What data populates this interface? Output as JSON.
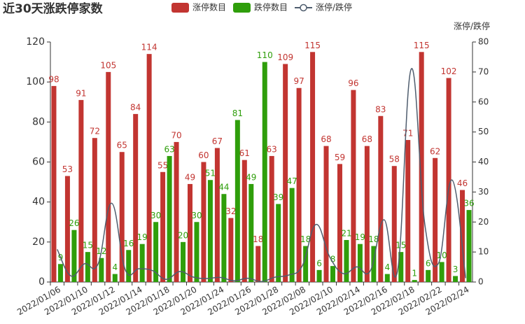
{
  "chart_data": {
    "type": "bar",
    "title": "近30天涨跌停家数",
    "y2label": "涨停/跌停",
    "categories": [
      "2022/01/06",
      null,
      "2022/01/10",
      null,
      "2022/01/12",
      null,
      "2022/01/14",
      null,
      "2022/01/18",
      null,
      "2022/01/20",
      null,
      "2022/01/24",
      null,
      "2022/01/26",
      null,
      "2022/01/28",
      null,
      "2022/02/08",
      null,
      "2022/02/10",
      null,
      "2022/02/14",
      null,
      "2022/02/16",
      null,
      "2022/02/18",
      null,
      "2022/02/22",
      null,
      "2022/02/24"
    ],
    "series": [
      {
        "name": "涨停数目",
        "type": "bar",
        "color": "#c23531",
        "values": [
          98,
          53,
          91,
          72,
          105,
          65,
          84,
          114,
          55,
          70,
          49,
          60,
          67,
          32,
          61,
          18,
          63,
          109,
          97,
          115,
          68,
          59,
          96,
          68,
          83,
          58,
          71,
          115,
          62,
          102,
          46
        ]
      },
      {
        "name": "跌停数目",
        "type": "bar",
        "color": "#2f9e0b",
        "values": [
          9,
          26,
          15,
          12,
          4,
          16,
          19,
          30,
          63,
          20,
          30,
          51,
          44,
          81,
          49,
          110,
          39,
          47,
          18,
          6,
          8,
          21,
          19,
          18,
          4,
          15,
          1,
          6,
          10,
          3,
          36
        ]
      },
      {
        "name": "涨停/跌停",
        "type": "line",
        "axis": "y2",
        "color": "#4f5d6e",
        "values": [
          10.89,
          2.04,
          6.07,
          6,
          26.25,
          4.06,
          4.42,
          3.8,
          0.87,
          3.5,
          1.63,
          1.18,
          1.52,
          0.4,
          1.24,
          0.16,
          1.62,
          2.32,
          5.39,
          19.17,
          8.5,
          2.81,
          5.05,
          3.78,
          20.75,
          3.87,
          71,
          19.17,
          6.2,
          34,
          1.28
        ]
      }
    ],
    "ylim": [
      0,
      120
    ],
    "yticks": [
      0,
      20,
      40,
      60,
      80,
      100,
      120
    ],
    "y2lim": [
      0,
      80
    ],
    "y2ticks": [
      0,
      10,
      20,
      30,
      40,
      50,
      60,
      70,
      80
    ]
  }
}
